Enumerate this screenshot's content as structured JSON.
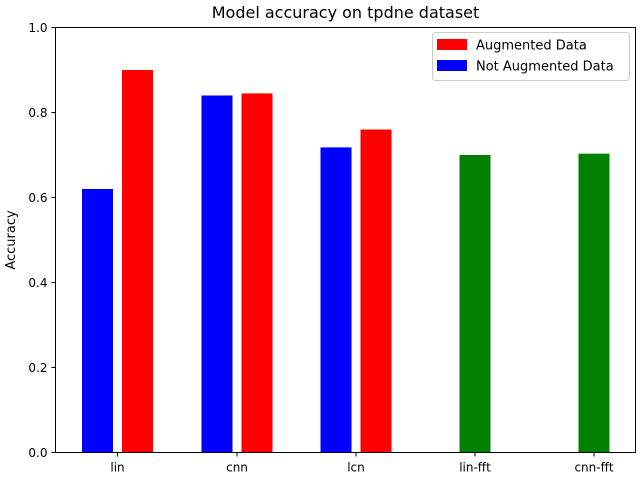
{
  "chart_data": {
    "type": "bar",
    "title": "Model accuracy on tpdne dataset",
    "xlabel": "",
    "ylabel": "Accuracy",
    "ylim": [
      0,
      1.0
    ],
    "yticks": [
      "0.0",
      "0.2",
      "0.4",
      "0.6",
      "0.8",
      "1.0"
    ],
    "categories": [
      "lin",
      "cnn",
      "lcn",
      "lin-fft",
      "cnn-fft"
    ],
    "grid": false,
    "legend_position": "top-right",
    "series": [
      {
        "name": "Not Augmented Data",
        "color": "#0000ff",
        "values": [
          0.62,
          0.84,
          0.718,
          null,
          null
        ]
      },
      {
        "name": "Augmented Data",
        "color": "#ff0000",
        "values": [
          0.9,
          0.845,
          0.76,
          null,
          null
        ]
      },
      {
        "color": "#008000",
        "values": [
          null,
          null,
          null,
          0.7,
          0.703
        ]
      }
    ],
    "legend": [
      {
        "label": "Augmented Data",
        "color": "#ff0000"
      },
      {
        "label": "Not Augmented Data",
        "color": "#0000ff"
      }
    ]
  }
}
